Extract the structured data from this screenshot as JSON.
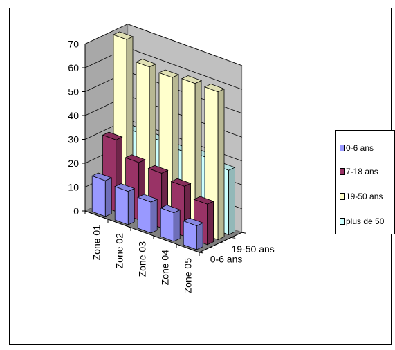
{
  "chart_data": {
    "type": "bar",
    "subtype": "3d-column",
    "categories": [
      "Zone 01",
      "Zone 02",
      "Zone 03",
      "Zone 04",
      "Zone 05"
    ],
    "series": [
      {
        "name": "0-6 ans",
        "values": [
          15,
          14,
          13,
          12,
          10
        ],
        "color": "#9999FF"
      },
      {
        "name": "7-18 ans",
        "values": [
          30,
          24,
          23,
          21,
          17
        ],
        "color": "#993366"
      },
      {
        "name": "19-50 ans",
        "values": [
          70,
          62,
          61,
          62,
          62
        ],
        "color": "#FFFFCC"
      },
      {
        "name": "plus de 50",
        "values": [
          29,
          29,
          28,
          29,
          27
        ],
        "color": "#CCFFFF"
      }
    ],
    "depth_axis_labels": [
      "0-6 ans",
      "19-50 ans"
    ],
    "yticks": [
      0,
      10,
      20,
      30,
      40,
      50,
      60,
      70
    ],
    "ylim": [
      0,
      70
    ],
    "grid": true,
    "legend_position": "right"
  }
}
